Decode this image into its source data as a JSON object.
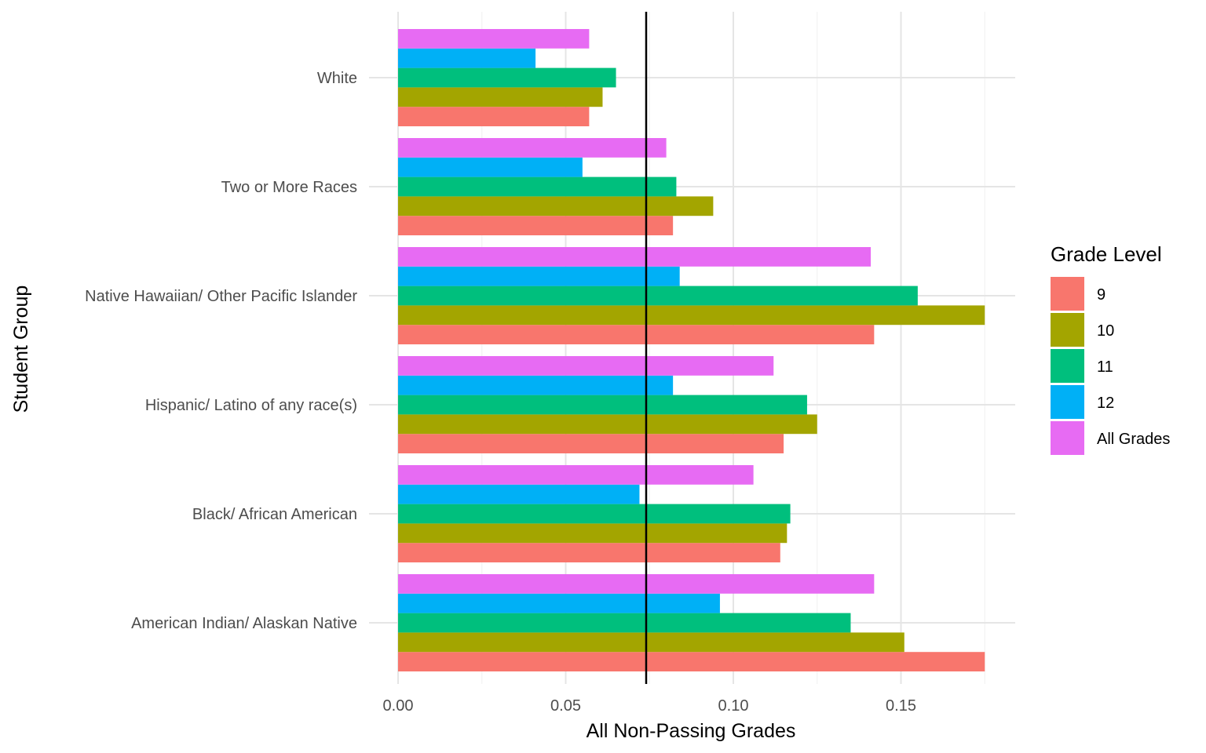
{
  "chart_data": {
    "type": "bar",
    "orientation": "horizontal",
    "xlabel": "All Non-Passing Grades",
    "ylabel": "Student Group",
    "xlim": [
      0,
      0.18
    ],
    "x_ticks": [
      "0.00",
      "0.05",
      "0.10",
      "0.15"
    ],
    "x_tick_values": [
      0,
      0.05,
      0.1,
      0.15
    ],
    "categories": [
      "American Indian/ Alaskan Native",
      "Black/ African American",
      "Hispanic/ Latino of any race(s)",
      "Native Hawaiian/ Other Pacific Islander",
      "Two or More Races",
      "White"
    ],
    "series": [
      {
        "name": "9",
        "color": "#F8766D",
        "values": [
          0.175,
          0.114,
          0.115,
          0.142,
          0.082,
          0.057
        ]
      },
      {
        "name": "10",
        "color": "#A3A500",
        "values": [
          0.151,
          0.116,
          0.125,
          0.175,
          0.094,
          0.061
        ]
      },
      {
        "name": "11",
        "color": "#00BF7D",
        "values": [
          0.135,
          0.117,
          0.122,
          0.155,
          0.083,
          0.065
        ]
      },
      {
        "name": "12",
        "color": "#00B0F6",
        "values": [
          0.096,
          0.072,
          0.082,
          0.084,
          0.055,
          0.041
        ]
      },
      {
        "name": "All Grades",
        "color": "#E76BF3",
        "values": [
          0.142,
          0.106,
          0.112,
          0.141,
          0.08,
          0.057
        ]
      }
    ],
    "reference_line": {
      "x": 0.074
    },
    "legend": {
      "title": "Grade Level",
      "placement": "right"
    },
    "grid": true
  }
}
